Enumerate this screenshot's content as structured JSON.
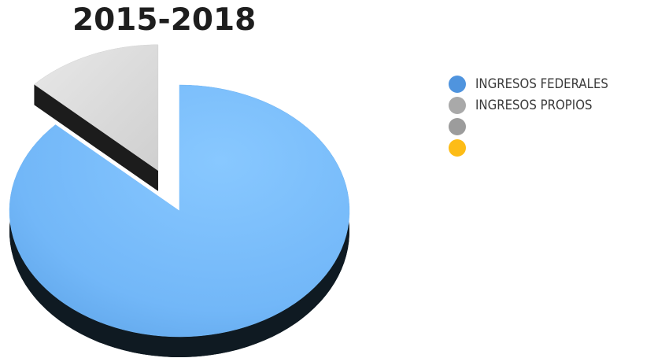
{
  "chart_data": {
    "type": "pie",
    "title": "2015-2018",
    "three_d": true,
    "exploded_slice": "INGRESOS PROPIOS",
    "slices": [
      {
        "label": "INGRESOS FEDERALES",
        "value": 0.87,
        "color": "#76bbfb",
        "side_color": "#0f1a22",
        "legend_color": "#4f94de"
      },
      {
        "label": "INGRESOS PROPIOS",
        "value": 0.13,
        "color": "#dcdcdc",
        "side_color": "#1c1c1c",
        "legend_color": "#a9a9a9"
      }
    ],
    "legend": {
      "placement": "right",
      "entries": [
        {
          "label": "INGRESOS FEDERALES",
          "color": "#4f94de"
        },
        {
          "label": "INGRESOS PROPIOS",
          "color": "#a9a9a9"
        },
        {
          "label": "",
          "color": "#9c9c9c"
        },
        {
          "label": "",
          "color": "#fdbc16"
        }
      ]
    }
  }
}
